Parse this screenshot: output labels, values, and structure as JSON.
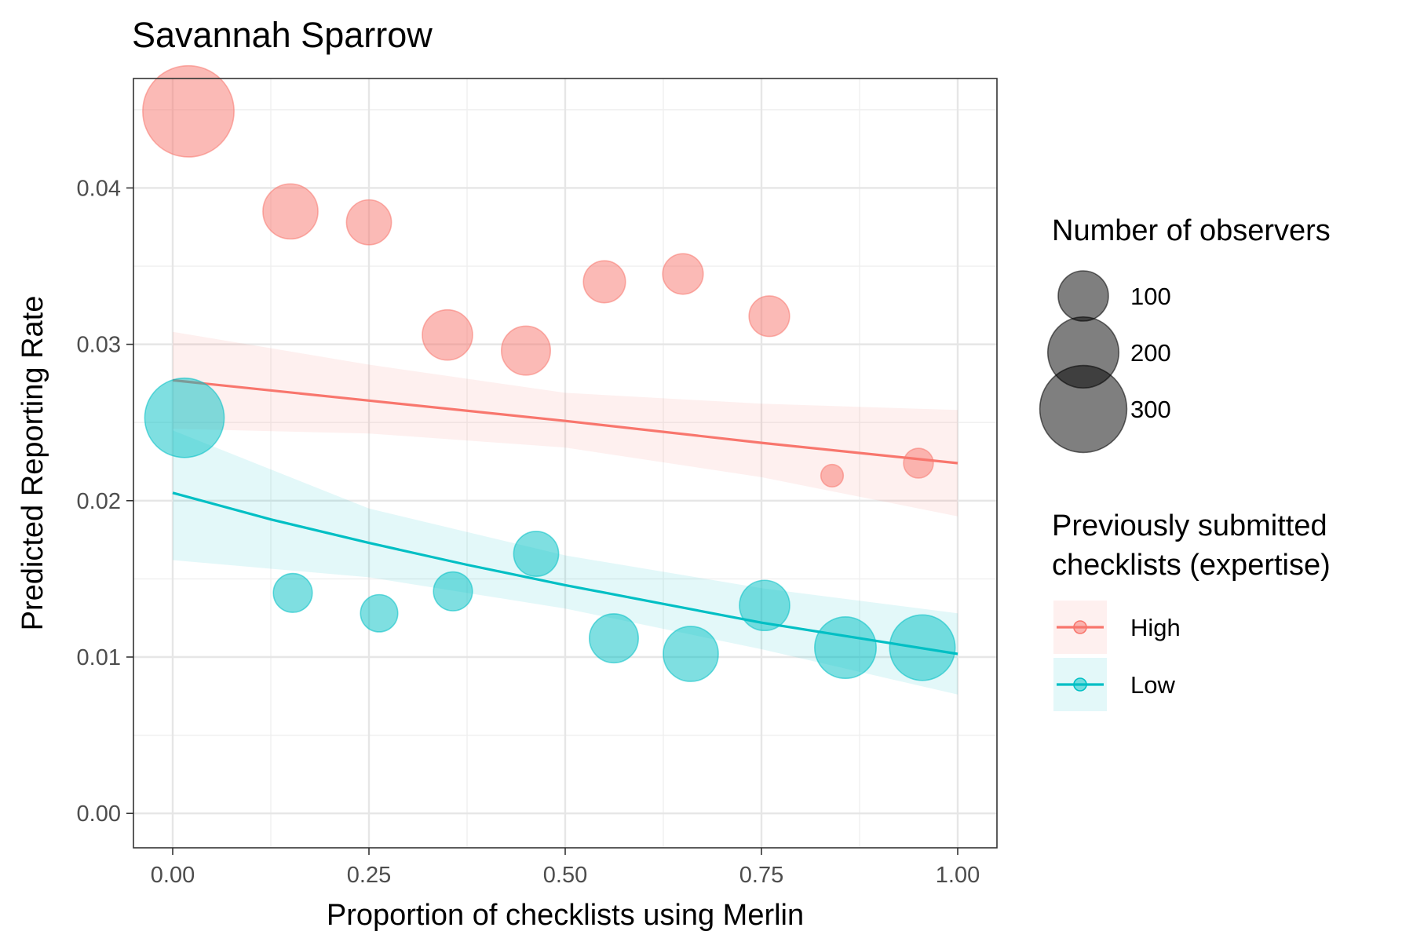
{
  "chart_data": {
    "type": "scatter",
    "title": "Savannah Sparrow",
    "xlabel": "Proportion of checklists using Merlin",
    "ylabel": "Predicted Reporting Rate",
    "xlim": [
      -0.05,
      1.05
    ],
    "ylim": [
      -0.0022,
      0.047
    ],
    "x_ticks": [
      0.0,
      0.25,
      0.5,
      0.75,
      1.0
    ],
    "x_tick_labels": [
      "0.00",
      "0.25",
      "0.50",
      "0.75",
      "1.00"
    ],
    "y_ticks": [
      0.0,
      0.01,
      0.02,
      0.03,
      0.04
    ],
    "y_tick_labels": [
      "0.00",
      "0.01",
      "0.02",
      "0.03",
      "0.04"
    ],
    "grid": true,
    "legend_position": "right",
    "size_legend": {
      "title": "Number of observers",
      "entries": [
        {
          "label": "100",
          "value": 100
        },
        {
          "label": "200",
          "value": 200
        },
        {
          "label": "300",
          "value": 300
        }
      ]
    },
    "color_legend": {
      "title": [
        "Previously submitted",
        "checklists (expertise)"
      ],
      "entries": [
        "High",
        "Low"
      ]
    },
    "series": [
      {
        "name": "High",
        "color": "#F8766D",
        "points": [
          {
            "x": 0.02,
            "y": 0.0449,
            "n": 330
          },
          {
            "x": 0.15,
            "y": 0.0385,
            "n": 120
          },
          {
            "x": 0.25,
            "y": 0.0378,
            "n": 80
          },
          {
            "x": 0.35,
            "y": 0.0306,
            "n": 100
          },
          {
            "x": 0.45,
            "y": 0.0296,
            "n": 95
          },
          {
            "x": 0.55,
            "y": 0.034,
            "n": 70
          },
          {
            "x": 0.65,
            "y": 0.0345,
            "n": 65
          },
          {
            "x": 0.76,
            "y": 0.0318,
            "n": 65
          },
          {
            "x": 0.84,
            "y": 0.0216,
            "n": 20
          },
          {
            "x": 0.95,
            "y": 0.0224,
            "n": 35
          }
        ],
        "fit": [
          {
            "x": 0.0,
            "y": 0.0277
          },
          {
            "x": 0.25,
            "y": 0.0264
          },
          {
            "x": 0.5,
            "y": 0.0251
          },
          {
            "x": 0.75,
            "y": 0.0237
          },
          {
            "x": 1.0,
            "y": 0.0224
          }
        ],
        "ribbon": [
          {
            "x": 0.0,
            "lo": 0.0246,
            "hi": 0.0308
          },
          {
            "x": 0.25,
            "lo": 0.0243,
            "hi": 0.0287
          },
          {
            "x": 0.5,
            "lo": 0.0234,
            "hi": 0.0269
          },
          {
            "x": 0.75,
            "lo": 0.0215,
            "hi": 0.0262
          },
          {
            "x": 1.0,
            "lo": 0.019,
            "hi": 0.0258
          }
        ]
      },
      {
        "name": "Low",
        "color": "#00BFC4",
        "points": [
          {
            "x": 0.015,
            "y": 0.0253,
            "n": 250
          },
          {
            "x": 0.153,
            "y": 0.0141,
            "n": 60
          },
          {
            "x": 0.263,
            "y": 0.0128,
            "n": 55
          },
          {
            "x": 0.357,
            "y": 0.0142,
            "n": 60
          },
          {
            "x": 0.463,
            "y": 0.0166,
            "n": 80
          },
          {
            "x": 0.562,
            "y": 0.0112,
            "n": 95
          },
          {
            "x": 0.66,
            "y": 0.0102,
            "n": 120
          },
          {
            "x": 0.754,
            "y": 0.0133,
            "n": 100
          },
          {
            "x": 0.857,
            "y": 0.0106,
            "n": 150
          },
          {
            "x": 0.955,
            "y": 0.0106,
            "n": 170
          }
        ],
        "fit": [
          {
            "x": 0.0,
            "y": 0.0205
          },
          {
            "x": 0.125,
            "y": 0.0188
          },
          {
            "x": 0.25,
            "y": 0.0173
          },
          {
            "x": 0.375,
            "y": 0.0159
          },
          {
            "x": 0.5,
            "y": 0.0146
          },
          {
            "x": 0.625,
            "y": 0.0134
          },
          {
            "x": 0.75,
            "y": 0.0122
          },
          {
            "x": 0.875,
            "y": 0.0112
          },
          {
            "x": 1.0,
            "y": 0.0102
          }
        ],
        "ribbon": [
          {
            "x": 0.0,
            "lo": 0.0162,
            "hi": 0.0245
          },
          {
            "x": 0.25,
            "lo": 0.0151,
            "hi": 0.0195
          },
          {
            "x": 0.5,
            "lo": 0.0131,
            "hi": 0.0165
          },
          {
            "x": 0.75,
            "lo": 0.0105,
            "hi": 0.0144
          },
          {
            "x": 1.0,
            "lo": 0.0076,
            "hi": 0.0128
          }
        ]
      }
    ]
  }
}
